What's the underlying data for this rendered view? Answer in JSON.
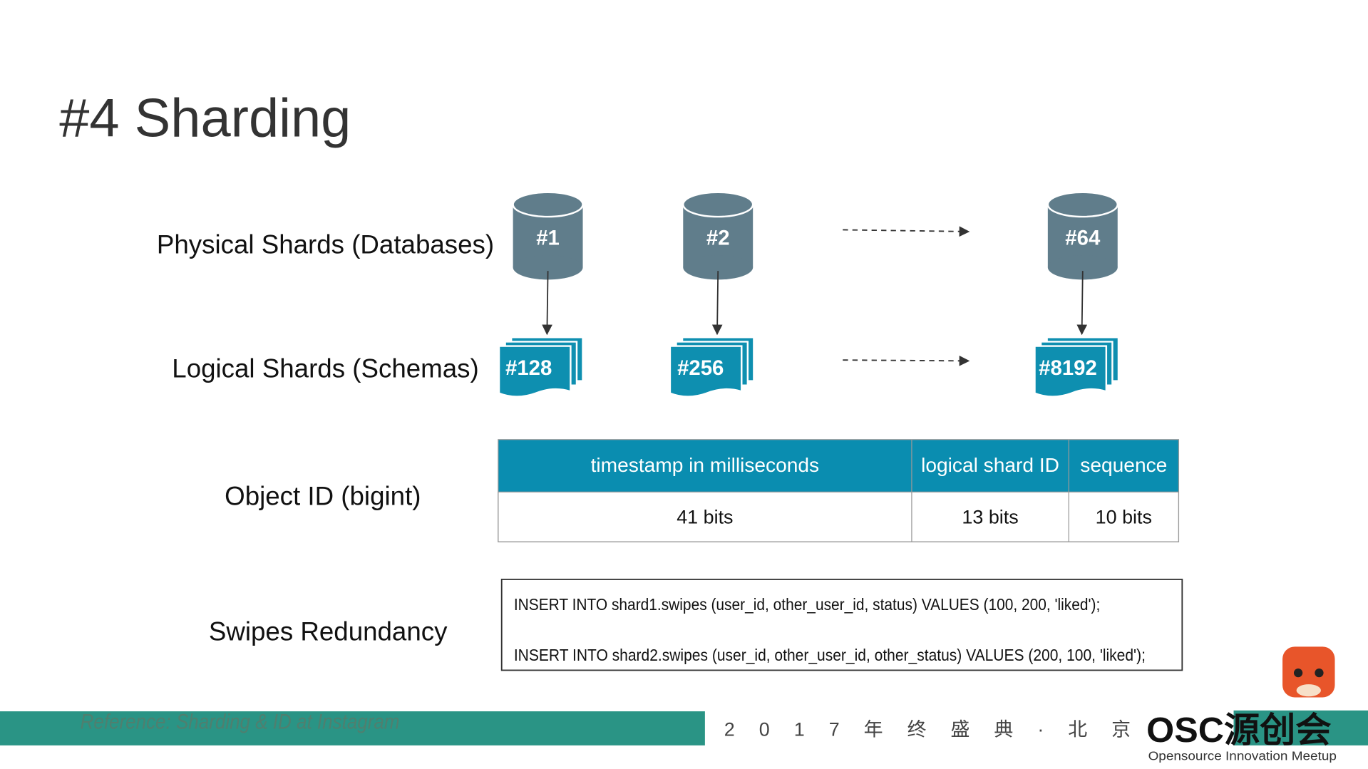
{
  "title": "#4 Sharding",
  "rows": {
    "physical": "Physical Shards (Databases)",
    "logical": "Logical Shards  (Schemas)",
    "object_id": "Object ID (bigint)",
    "swipes": "Swipes Redundancy"
  },
  "physical_shards": [
    "#1",
    "#2",
    "#64"
  ],
  "logical_shards": [
    "#128",
    "#256",
    "#8192"
  ],
  "table": {
    "header": [
      "timestamp in milliseconds",
      "logical shard ID",
      "sequence"
    ],
    "row": [
      "41 bits",
      "13 bits",
      "10 bits"
    ]
  },
  "sql": [
    "INSERT INTO shard1.swipes (user_id, other_user_id, status) VALUES (100, 200, 'liked');",
    "INSERT INTO shard2.swipes (user_id, other_user_id, other_status) VALUES (200, 100, 'liked');"
  ],
  "reference": "Reference: Sharding & ID at Instagram",
  "footer": {
    "event": "2 0 1 7 年 终 盛 典 · 北 京",
    "logo": "OSC源创会",
    "tagline": "Opensource Innovation Meetup"
  }
}
